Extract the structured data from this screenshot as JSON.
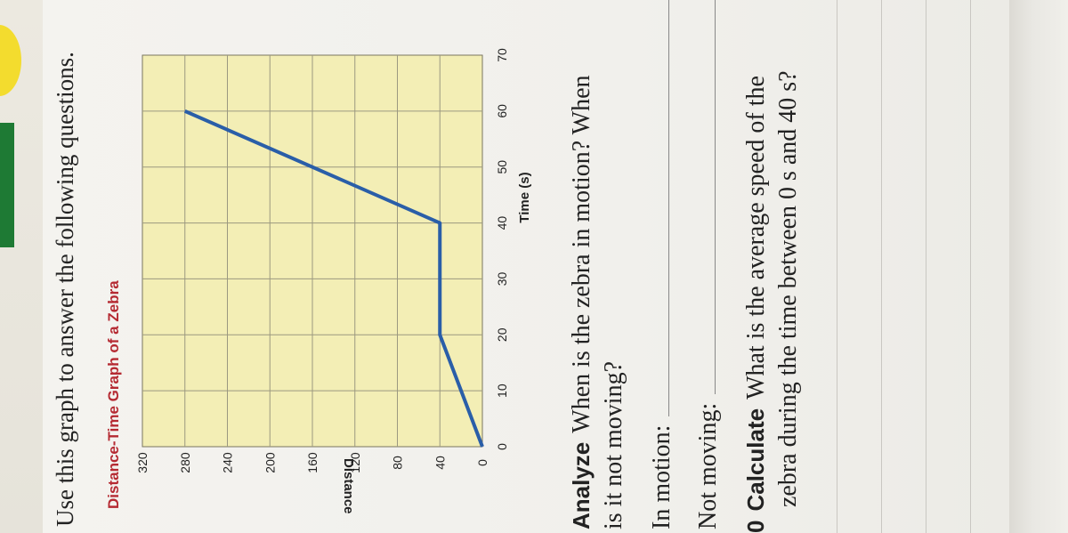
{
  "instruction": "Use this graph to answer the following questions.",
  "chart_data": {
    "type": "line",
    "title": "Distance-Time Graph of a Zebra",
    "xlabel": "Time (s)",
    "ylabel": "Distance (m)",
    "xlim": [
      0,
      70
    ],
    "ylim": [
      0,
      320
    ],
    "x_ticks": [
      0,
      10,
      20,
      30,
      40,
      50,
      60,
      70
    ],
    "y_ticks": [
      0,
      40,
      80,
      120,
      160,
      200,
      240,
      280,
      320
    ],
    "grid": true,
    "series": [
      {
        "x": [
          0,
          20,
          40,
          60
        ],
        "y": [
          0,
          40,
          40,
          280
        ],
        "color": "#2a5ea8"
      }
    ],
    "plot_fill": "#f3eeb5"
  },
  "questions": [
    {
      "label": "Analyze",
      "text_line1": "When is the zebra in motion? When",
      "text_line2": "is it not moving?"
    }
  ],
  "answers": {
    "in_motion": "In motion:",
    "not_moving": "Not moving:"
  },
  "question2": {
    "label_prefix": "0",
    "label": "Calculate",
    "text_line1": "What is the average speed of the",
    "text_line2": "zebra during the time between 0 s and 40 s?"
  }
}
